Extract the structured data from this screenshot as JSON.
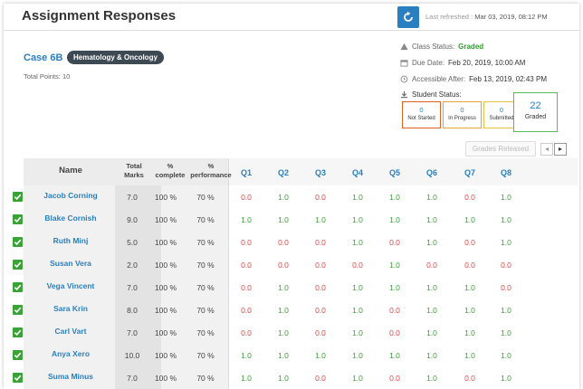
{
  "header": {
    "title": "Assignment Responses",
    "refresh_label": "Last refreshed :",
    "refresh_time": "Mar 03, 2019, 08:12 PM",
    "refresh_icon": "refresh-icon"
  },
  "case": {
    "title": "Case 6B",
    "badge": "Hematology & Oncology",
    "total_points": "Total Points: 10"
  },
  "status": {
    "class_status_label": "Class Status:",
    "class_status_value": "Graded",
    "due_label": "Due Date:",
    "due_value": "Feb 20, 2019, 10:00 AM",
    "accessible_label": "Accessible After:",
    "accessible_value": "Feb 13, 2019, 02:43 PM",
    "student_status_label": "Student Status:",
    "boxes": [
      {
        "count": "0",
        "label": "Not Started"
      },
      {
        "count": "0",
        "label": "In Progress"
      },
      {
        "count": "0",
        "label": "Submitted"
      },
      {
        "count": "22",
        "label": "Graded"
      }
    ],
    "colors": {
      "not_started": "#e0601f",
      "in_progress": "#e8a23a",
      "submitted": "#e8c23a",
      "graded": "#5cb85c"
    }
  },
  "controls": {
    "grades_released": "Grades Released",
    "prev": "◂",
    "next": "▸"
  },
  "table": {
    "headers": {
      "name": "Name",
      "marks_1": "Total",
      "marks_2": "Marks",
      "complete_1": "%",
      "complete_2": "complete",
      "perf_1": "%",
      "perf_2": "performance",
      "questions": [
        "Q1",
        "Q2",
        "Q3",
        "Q4",
        "Q5",
        "Q6",
        "Q7",
        "Q8"
      ]
    },
    "rows": [
      {
        "name": "Jacob Corning",
        "marks": "7.0",
        "complete": "100 %",
        "performance": "70 %",
        "q": [
          "0.0",
          "1.0",
          "0.0",
          "1.0",
          "1.0",
          "1.0",
          "0.0",
          "1.0"
        ]
      },
      {
        "name": "Blake Cornish",
        "marks": "9.0",
        "complete": "100 %",
        "performance": "70 %",
        "q": [
          "1.0",
          "1.0",
          "1.0",
          "1.0",
          "1.0",
          "1.0",
          "1.0",
          "1.0"
        ]
      },
      {
        "name": "Ruth Minj",
        "marks": "5.0",
        "complete": "100 %",
        "performance": "70 %",
        "q": [
          "0.0",
          "0.0",
          "0.0",
          "1.0",
          "0.0",
          "1.0",
          "0.0",
          "1.0"
        ]
      },
      {
        "name": "Susan Vera",
        "marks": "2.0",
        "complete": "100 %",
        "performance": "70 %",
        "q": [
          "0.0",
          "0.0",
          "0.0",
          "0.0",
          "1.0",
          "0.0",
          "0.0",
          "0.0"
        ]
      },
      {
        "name": "Vega Vincent",
        "marks": "7.0",
        "complete": "100 %",
        "performance": "70 %",
        "q": [
          "0.0",
          "1.0",
          "0.0",
          "1.0",
          "1.0",
          "1.0",
          "1.0",
          "0.0"
        ]
      },
      {
        "name": "Sara Krin",
        "marks": "8.0",
        "complete": "100 %",
        "performance": "70 %",
        "q": [
          "0.0",
          "1.0",
          "0.0",
          "1.0",
          "0.0",
          "1.0",
          "1.0",
          "1.0"
        ]
      },
      {
        "name": "Carl Vart",
        "marks": "7.0",
        "complete": "100 %",
        "performance": "70 %",
        "q": [
          "0.0",
          "1.0",
          "0.0",
          "1.0",
          "0.0",
          "1.0",
          "1.0",
          "1.0"
        ]
      },
      {
        "name": "Anya Xero",
        "marks": "10.0",
        "complete": "100 %",
        "performance": "70 %",
        "q": [
          "1.0",
          "1.0",
          "1.0",
          "1.0",
          "1.0",
          "1.0",
          "1.0",
          "1.0"
        ]
      },
      {
        "name": "Suma Minus",
        "marks": "7.0",
        "complete": "100 %",
        "performance": "70 %",
        "q": [
          "1.0",
          "1.0",
          "0.0",
          "1.0",
          "0.0",
          "1.0",
          "0.0",
          "1.0"
        ]
      }
    ]
  }
}
